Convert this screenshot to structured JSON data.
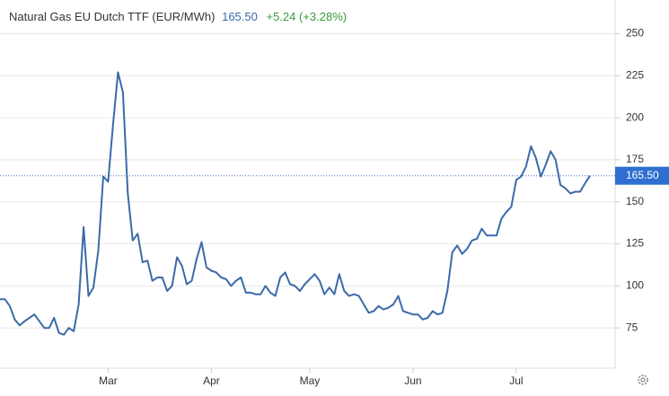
{
  "chart_data": {
    "type": "line",
    "title": "Natural Gas EU Dutch TTF (EUR/MWh)",
    "price": "165.50",
    "change": "+5.24 (+3.28%)",
    "color": "#3b6aa8",
    "categories": [
      null,
      null,
      null,
      null,
      null,
      null,
      null,
      null,
      null,
      null,
      null,
      null,
      null,
      null,
      null,
      null,
      null,
      null,
      null,
      null,
      null,
      null,
      "Mar",
      null,
      null,
      null,
      null,
      null,
      null,
      null,
      null,
      null,
      null,
      null,
      null,
      null,
      null,
      null,
      null,
      null,
      null,
      null,
      null,
      "Apr",
      null,
      null,
      null,
      null,
      null,
      null,
      null,
      null,
      null,
      null,
      null,
      null,
      null,
      null,
      null,
      null,
      null,
      null,
      null,
      "May",
      null,
      null,
      null,
      null,
      null,
      null,
      null,
      null,
      null,
      null,
      null,
      null,
      null,
      null,
      null,
      null,
      null,
      null,
      null,
      null,
      "Jun",
      null,
      null,
      null,
      null,
      null,
      null,
      null,
      null,
      null,
      null,
      null,
      null,
      null,
      null,
      null,
      null,
      null,
      null,
      null,
      null,
      "Jul",
      null,
      null,
      null,
      null,
      null,
      null,
      null,
      null,
      null,
      null,
      null,
      null,
      null,
      null,
      null
    ],
    "values": [
      92,
      92,
      88,
      80,
      76.5,
      79,
      81,
      83,
      79,
      75,
      75,
      81,
      72,
      71,
      75,
      73,
      89,
      135,
      94,
      99,
      121,
      165,
      162,
      196,
      227,
      215,
      155,
      127,
      131,
      114,
      115,
      103,
      105,
      105,
      97,
      100,
      117,
      112,
      101,
      103,
      116,
      126,
      111,
      109,
      108,
      105,
      104,
      100,
      103,
      105,
      96,
      96,
      95,
      95,
      100,
      96,
      94,
      105,
      108,
      101,
      100,
      97,
      101,
      104,
      107,
      103,
      95,
      99,
      95,
      107,
      97,
      94,
      95,
      94,
      89,
      84,
      85,
      88,
      86,
      87,
      89,
      94,
      85,
      84,
      83,
      83,
      80,
      81,
      85,
      83,
      84,
      97,
      120,
      124,
      119,
      122,
      127,
      128,
      134,
      130,
      130,
      130,
      140,
      144,
      147,
      163,
      165,
      171,
      183,
      176,
      165,
      172,
      180,
      175,
      160,
      158,
      155,
      156,
      156,
      161,
      165.5
    ],
    "ylim": [
      50,
      270
    ],
    "yticks": [
      75,
      100,
      125,
      150,
      175,
      200,
      225,
      250
    ],
    "grid": true
  }
}
